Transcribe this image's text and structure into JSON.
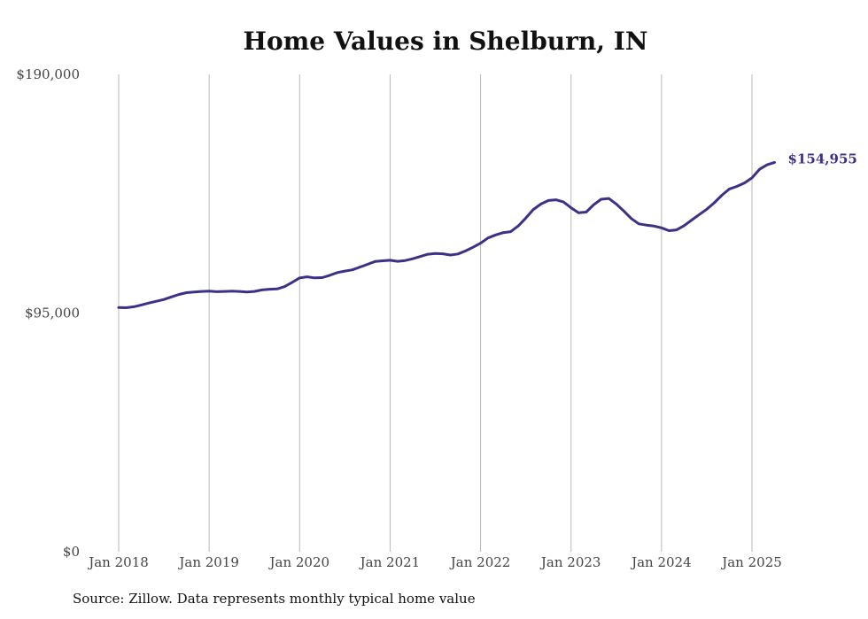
{
  "chart_data": {
    "type": "line",
    "title": "Home Values in Shelburn, IN",
    "xlabel": "",
    "ylabel": "",
    "ylim": [
      0,
      190000
    ],
    "y_ticks": [
      {
        "value": 0,
        "label": "$0"
      },
      {
        "value": 95000,
        "label": "$95,000"
      },
      {
        "value": 190000,
        "label": "$190,000"
      }
    ],
    "x_ticks": [
      {
        "value": 2018.0,
        "label": "Jan 2018"
      },
      {
        "value": 2019.0,
        "label": "Jan 2019"
      },
      {
        "value": 2020.0,
        "label": "Jan 2020"
      },
      {
        "value": 2021.0,
        "label": "Jan 2021"
      },
      {
        "value": 2022.0,
        "label": "Jan 2022"
      },
      {
        "value": 2023.0,
        "label": "Jan 2023"
      },
      {
        "value": 2024.0,
        "label": "Jan 2024"
      },
      {
        "value": 2025.0,
        "label": "Jan 2025"
      }
    ],
    "grid": {
      "vertical": true,
      "horizontal": false
    },
    "line_color": "#3b3288",
    "end_label": "$154,955",
    "series": [
      {
        "values": [
          {
            "x": 2018.0,
            "y": 97200
          },
          {
            "x": 2018.083,
            "y": 97100
          },
          {
            "x": 2018.167,
            "y": 97500
          },
          {
            "x": 2018.25,
            "y": 98200
          },
          {
            "x": 2018.333,
            "y": 99000
          },
          {
            "x": 2018.417,
            "y": 99700
          },
          {
            "x": 2018.5,
            "y": 100400
          },
          {
            "x": 2018.583,
            "y": 101400
          },
          {
            "x": 2018.667,
            "y": 102400
          },
          {
            "x": 2018.75,
            "y": 103100
          },
          {
            "x": 2018.833,
            "y": 103400
          },
          {
            "x": 2018.917,
            "y": 103600
          },
          {
            "x": 2019.0,
            "y": 103700
          },
          {
            "x": 2019.083,
            "y": 103500
          },
          {
            "x": 2019.167,
            "y": 103600
          },
          {
            "x": 2019.25,
            "y": 103700
          },
          {
            "x": 2019.333,
            "y": 103600
          },
          {
            "x": 2019.417,
            "y": 103400
          },
          {
            "x": 2019.5,
            "y": 103600
          },
          {
            "x": 2019.583,
            "y": 104200
          },
          {
            "x": 2019.667,
            "y": 104500
          },
          {
            "x": 2019.75,
            "y": 104600
          },
          {
            "x": 2019.833,
            "y": 105500
          },
          {
            "x": 2019.917,
            "y": 107200
          },
          {
            "x": 2020.0,
            "y": 109000
          },
          {
            "x": 2020.083,
            "y": 109400
          },
          {
            "x": 2020.167,
            "y": 109000
          },
          {
            "x": 2020.25,
            "y": 109100
          },
          {
            "x": 2020.333,
            "y": 110000
          },
          {
            "x": 2020.417,
            "y": 111100
          },
          {
            "x": 2020.5,
            "y": 111700
          },
          {
            "x": 2020.583,
            "y": 112200
          },
          {
            "x": 2020.667,
            "y": 113300
          },
          {
            "x": 2020.75,
            "y": 114400
          },
          {
            "x": 2020.833,
            "y": 115500
          },
          {
            "x": 2020.917,
            "y": 115800
          },
          {
            "x": 2021.0,
            "y": 116000
          },
          {
            "x": 2021.083,
            "y": 115600
          },
          {
            "x": 2021.167,
            "y": 115900
          },
          {
            "x": 2021.25,
            "y": 116600
          },
          {
            "x": 2021.333,
            "y": 117500
          },
          {
            "x": 2021.417,
            "y": 118400
          },
          {
            "x": 2021.5,
            "y": 118700
          },
          {
            "x": 2021.583,
            "y": 118600
          },
          {
            "x": 2021.667,
            "y": 118100
          },
          {
            "x": 2021.75,
            "y": 118500
          },
          {
            "x": 2021.833,
            "y": 119700
          },
          {
            "x": 2021.917,
            "y": 121200
          },
          {
            "x": 2022.0,
            "y": 122800
          },
          {
            "x": 2022.083,
            "y": 124900
          },
          {
            "x": 2022.167,
            "y": 126100
          },
          {
            "x": 2022.25,
            "y": 127000
          },
          {
            "x": 2022.333,
            "y": 127400
          },
          {
            "x": 2022.417,
            "y": 129700
          },
          {
            "x": 2022.5,
            "y": 132800
          },
          {
            "x": 2022.583,
            "y": 136200
          },
          {
            "x": 2022.667,
            "y": 138400
          },
          {
            "x": 2022.75,
            "y": 139800
          },
          {
            "x": 2022.833,
            "y": 140100
          },
          {
            "x": 2022.917,
            "y": 139200
          },
          {
            "x": 2023.0,
            "y": 136900
          },
          {
            "x": 2023.083,
            "y": 134900
          },
          {
            "x": 2023.167,
            "y": 135200
          },
          {
            "x": 2023.25,
            "y": 138100
          },
          {
            "x": 2023.333,
            "y": 140300
          },
          {
            "x": 2023.417,
            "y": 140600
          },
          {
            "x": 2023.5,
            "y": 138400
          },
          {
            "x": 2023.583,
            "y": 135600
          },
          {
            "x": 2023.667,
            "y": 132600
          },
          {
            "x": 2023.75,
            "y": 130500
          },
          {
            "x": 2023.833,
            "y": 130000
          },
          {
            "x": 2023.917,
            "y": 129600
          },
          {
            "x": 2024.0,
            "y": 128900
          },
          {
            "x": 2024.083,
            "y": 127800
          },
          {
            "x": 2024.167,
            "y": 128100
          },
          {
            "x": 2024.25,
            "y": 129800
          },
          {
            "x": 2024.333,
            "y": 132000
          },
          {
            "x": 2024.417,
            "y": 134200
          },
          {
            "x": 2024.5,
            "y": 136300
          },
          {
            "x": 2024.583,
            "y": 138900
          },
          {
            "x": 2024.667,
            "y": 141900
          },
          {
            "x": 2024.75,
            "y": 144400
          },
          {
            "x": 2024.833,
            "y": 145400
          },
          {
            "x": 2024.917,
            "y": 146800
          },
          {
            "x": 2025.0,
            "y": 148800
          },
          {
            "x": 2025.083,
            "y": 152200
          },
          {
            "x": 2025.167,
            "y": 154000
          },
          {
            "x": 2025.25,
            "y": 154955
          }
        ]
      }
    ]
  },
  "source": "Source: Zillow. Data represents monthly typical home value"
}
